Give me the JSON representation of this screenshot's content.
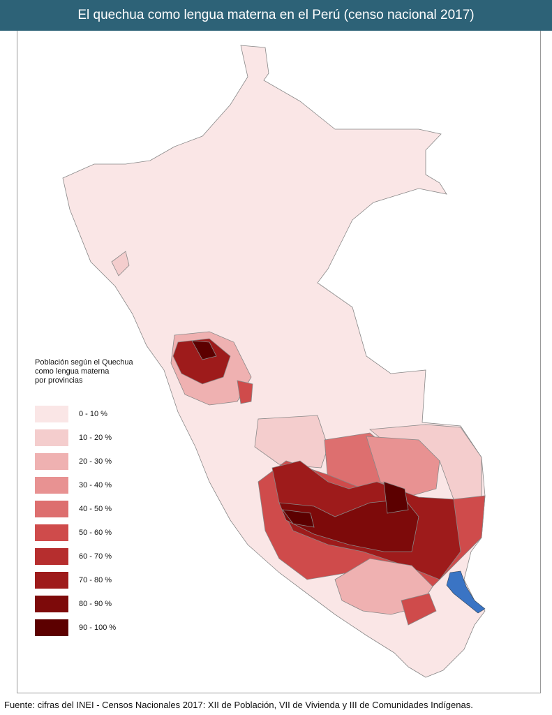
{
  "header": {
    "title": "El quechua como lengua materna en el Perú (censo nacional 2017)"
  },
  "legend": {
    "title": [
      "Población según el Quechua",
      "como lengua materna",
      "por provincias"
    ],
    "items": [
      {
        "label": "0 - 10 %",
        "color": "#fae6e6"
      },
      {
        "label": "10 - 20 %",
        "color": "#f4cdcd"
      },
      {
        "label": "20 - 30 %",
        "color": "#efb1b1"
      },
      {
        "label": "30 - 40 %",
        "color": "#e89292"
      },
      {
        "label": "40 - 50 %",
        "color": "#dd6f6f"
      },
      {
        "label": "50 - 60 %",
        "color": "#cf4b4b"
      },
      {
        "label": "60 - 70 %",
        "color": "#b62e2e"
      },
      {
        "label": "70 - 80 %",
        "color": "#9e1b1b"
      },
      {
        "label": "80 - 90 %",
        "color": "#7d0a0a"
      },
      {
        "label": "90 - 100 %",
        "color": "#5c0000"
      }
    ]
  },
  "footer": {
    "source": "Fuente: cifras del INEI - Censos Nacionales 2017: XII de Población, VII de Vivienda y III de Comunidades Indígenas."
  }
}
